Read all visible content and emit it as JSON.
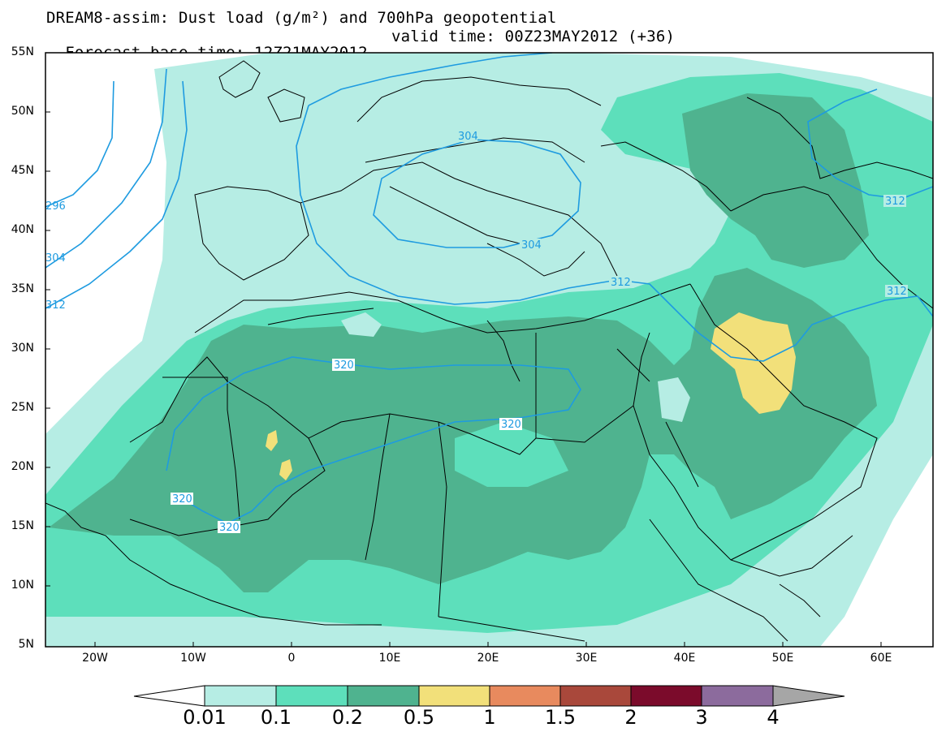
{
  "title_line1": "DREAM8-assim: Dust load (g/m²) and 700hPa geopotential",
  "base_time": "Forecast base time: 12Z21MAY2012",
  "valid_time": "valid time: 00Z23MAY2012 (+36)",
  "lat_labels": [
    "55N",
    "50N",
    "45N",
    "40N",
    "35N",
    "30N",
    "25N",
    "20N",
    "15N",
    "10N",
    "5N"
  ],
  "lon_labels": [
    "20W",
    "10W",
    "0",
    "10E",
    "20E",
    "30E",
    "40E",
    "50E",
    "60E"
  ],
  "contour_labels": [
    "304",
    "304",
    "296",
    "304",
    "312",
    "312",
    "312",
    "312",
    "320",
    "320",
    "320",
    "320"
  ],
  "colorbar": {
    "labels": [
      "0.01",
      "0.1",
      "0.2",
      "0.5",
      "1",
      "1.5",
      "2",
      "3",
      "4"
    ],
    "colors": [
      "#ffffff",
      "#b6ede4",
      "#5ddfbb",
      "#4fb38f",
      "#f2e07a",
      "#e88a5e",
      "#a9483b",
      "#7b0b2b",
      "#8c6b9d",
      "#a6a6a6"
    ]
  },
  "colors": {
    "level1": "#b6ede4",
    "level2": "#5ddfbb",
    "level3": "#4fb38f",
    "level4": "#f2e07a",
    "contour": "#1e9be0",
    "border": "#000000"
  }
}
